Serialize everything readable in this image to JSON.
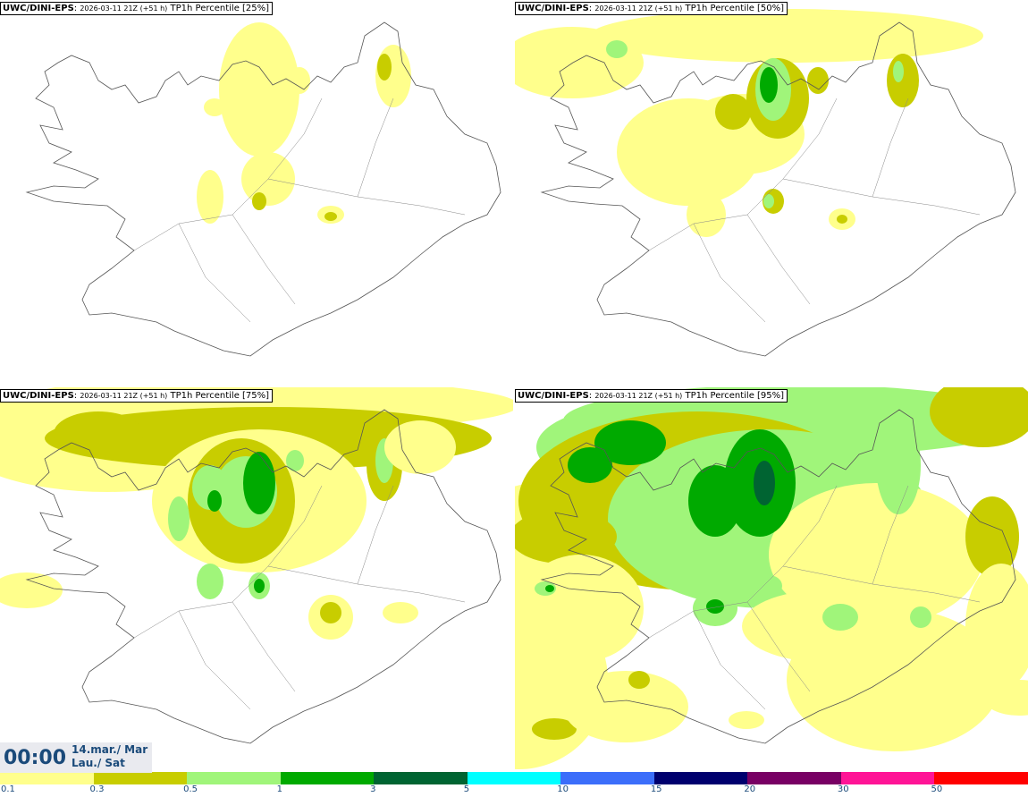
{
  "panels": [
    {
      "model": "UWC/DINI-EPS",
      "run": "2026-03-11 21Z (+51 h)",
      "product": "TP1h Percentile [25%]",
      "percentile": 25
    },
    {
      "model": "UWC/DINI-EPS",
      "run": "2026-03-11 21Z (+51 h)",
      "product": "TP1h Percentile [50%]",
      "percentile": 50
    },
    {
      "model": "UWC/DINI-EPS",
      "run": "2026-03-11 21Z (+51 h)",
      "product": "TP1h Percentile [75%]",
      "percentile": 75
    },
    {
      "model": "UWC/DINI-EPS",
      "run": "2026-03-11 21Z (+51 h)",
      "product": "TP1h Percentile [95%]",
      "percentile": 95
    }
  ],
  "valid_time": {
    "time": "00:00",
    "date_line1": "14.mar./ Mar",
    "date_line2": "Lau./ Sat"
  },
  "colorbar": {
    "labels": [
      "0.1",
      "0.3",
      "0.5",
      "1",
      "3",
      "5",
      "10",
      "15",
      "20",
      "30",
      "50"
    ],
    "colors": [
      "#ffff8c",
      "#c8cd00",
      "#a0f57a",
      "#00aa00",
      "#006432",
      "#00ffff",
      "#3c6efa",
      "#00006e",
      "#780064",
      "#ff1496",
      "#ff0000"
    ]
  },
  "colors": {
    "title_text": "#1a4a7a",
    "time_box_bg": "#e9eaef",
    "coast": "#555555"
  }
}
